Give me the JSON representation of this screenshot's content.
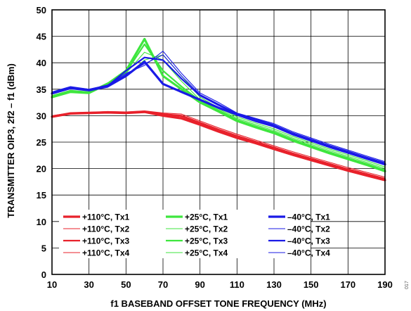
{
  "chart_data": {
    "type": "line",
    "xlabel": "f1 BASEBAND OFFSET TONE FREQUENCY (MHz)",
    "ylabel": "TRANSMITTER OIP3, 2f2 – f1 (dBm)",
    "xlim": [
      10,
      190
    ],
    "ylim": [
      0,
      50
    ],
    "xticks": [
      10,
      30,
      50,
      70,
      90,
      110,
      130,
      150,
      170,
      190
    ],
    "yticks": [
      0,
      5,
      10,
      15,
      20,
      25,
      30,
      35,
      40,
      45,
      50
    ],
    "grid": true,
    "legend_position": "bottom-left",
    "corner_code": "017",
    "x": [
      10,
      20,
      30,
      40,
      50,
      60,
      70,
      80,
      90,
      100,
      110,
      120,
      130,
      140,
      150,
      160,
      170,
      180,
      190
    ],
    "series": [
      {
        "name": "+110°C, Tx1",
        "color": "#e8212b",
        "style": "bold",
        "values": [
          29.8,
          30.4,
          30.5,
          30.6,
          30.5,
          30.7,
          30.0,
          29.5,
          28.3,
          27.0,
          25.8,
          24.8,
          23.7,
          22.6,
          21.6,
          20.6,
          19.6,
          18.7,
          17.8
        ]
      },
      {
        "name": "+110°C, Tx2",
        "color": "#e8212b",
        "style": "thin",
        "values": [
          30.0,
          30.5,
          30.6,
          30.8,
          30.7,
          30.9,
          30.5,
          30.3,
          29.0,
          27.7,
          26.5,
          25.4,
          24.3,
          23.2,
          22.2,
          21.2,
          20.2,
          19.3,
          18.4
        ]
      },
      {
        "name": "+110°C, Tx3",
        "color": "#e8212b",
        "style": "medium",
        "values": [
          29.9,
          30.5,
          30.6,
          30.7,
          30.6,
          30.8,
          30.3,
          30.0,
          28.7,
          27.4,
          26.2,
          25.1,
          24.0,
          22.9,
          21.9,
          20.9,
          19.9,
          19.0,
          18.1
        ]
      },
      {
        "name": "+110°C, Tx4",
        "color": "#e8212b",
        "style": "thin",
        "values": [
          29.9,
          30.4,
          30.5,
          30.6,
          30.5,
          30.6,
          30.1,
          29.8,
          28.5,
          27.2,
          26.0,
          24.9,
          23.8,
          22.8,
          21.8,
          20.8,
          19.8,
          18.9,
          18.0
        ]
      },
      {
        "name": "+25°C, Tx1",
        "color": "#3ee63e",
        "style": "bold",
        "values": [
          33.5,
          34.5,
          34.3,
          36.0,
          38.5,
          44.5,
          37.5,
          35.0,
          32.5,
          30.8,
          29.0,
          27.8,
          26.7,
          25.3,
          24.1,
          22.9,
          21.8,
          20.7,
          19.5
        ]
      },
      {
        "name": "+25°C, Tx2",
        "color": "#3ee63e",
        "style": "thin",
        "values": [
          33.7,
          34.7,
          34.4,
          36.1,
          38.0,
          42.0,
          40.5,
          36.5,
          33.0,
          31.3,
          29.5,
          28.3,
          27.2,
          25.8,
          24.6,
          23.4,
          22.3,
          21.2,
          20.0
        ]
      },
      {
        "name": "+25°C, Tx3",
        "color": "#3ee63e",
        "style": "medium",
        "values": [
          33.6,
          34.6,
          34.3,
          36.0,
          38.2,
          43.5,
          38.5,
          35.5,
          32.8,
          31.0,
          29.2,
          28.0,
          26.9,
          25.5,
          24.3,
          23.1,
          22.0,
          20.9,
          19.7
        ]
      },
      {
        "name": "+25°C, Tx4",
        "color": "#3ee63e",
        "style": "thin",
        "values": [
          33.8,
          34.8,
          34.5,
          36.2,
          37.5,
          40.5,
          41.5,
          37.5,
          33.5,
          31.5,
          29.8,
          28.6,
          27.5,
          26.1,
          24.9,
          23.7,
          22.6,
          21.5,
          20.3
        ]
      },
      {
        "name": "–40°C, Tx1",
        "color": "#1a1ae6",
        "style": "bold",
        "values": [
          34.2,
          35.2,
          34.8,
          35.5,
          37.5,
          40.2,
          36.0,
          34.5,
          33.0,
          31.5,
          30.2,
          29.0,
          28.0,
          26.5,
          25.3,
          24.1,
          23.0,
          21.9,
          20.8
        ]
      },
      {
        "name": "–40°C, Tx2",
        "color": "#1a1ae6",
        "style": "thin",
        "values": [
          34.5,
          35.5,
          35.0,
          35.8,
          38.0,
          39.5,
          42.2,
          38.0,
          34.3,
          32.5,
          30.5,
          29.5,
          28.5,
          27.0,
          25.8,
          24.6,
          23.5,
          22.4,
          21.3
        ]
      },
      {
        "name": "–40°C, Tx3",
        "color": "#1a1ae6",
        "style": "medium",
        "values": [
          34.3,
          35.3,
          34.9,
          35.6,
          38.5,
          41.0,
          40.5,
          37.0,
          33.8,
          32.0,
          30.3,
          29.2,
          28.2,
          26.7,
          25.5,
          24.3,
          23.2,
          22.1,
          21.0
        ]
      },
      {
        "name": "–40°C, Tx4",
        "color": "#1a1ae6",
        "style": "thin",
        "values": [
          34.4,
          35.4,
          35.0,
          35.7,
          37.8,
          39.8,
          41.5,
          37.5,
          34.0,
          32.2,
          30.4,
          29.4,
          28.3,
          26.8,
          25.6,
          24.4,
          23.3,
          22.2,
          21.1
        ]
      }
    ]
  }
}
